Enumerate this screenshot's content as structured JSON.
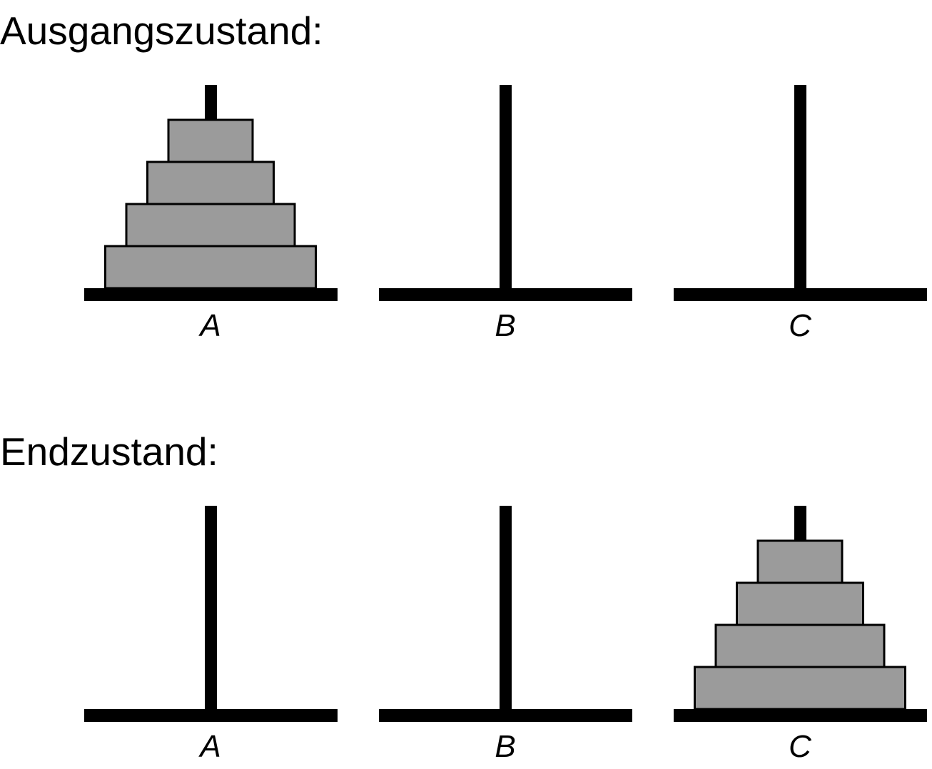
{
  "colors": {
    "disk_fill": "#9b9b9b",
    "disk_stroke": "#000000",
    "peg": "#000000",
    "background": "#ffffff"
  },
  "states": [
    {
      "title": "Ausgangszustand:",
      "pegs": [
        {
          "label": "A",
          "disks": [
            4,
            3,
            2,
            1
          ]
        },
        {
          "label": "B",
          "disks": []
        },
        {
          "label": "C",
          "disks": []
        }
      ]
    },
    {
      "title": "Endzustand:",
      "pegs": [
        {
          "label": "A",
          "disks": []
        },
        {
          "label": "B",
          "disks": []
        },
        {
          "label": "C",
          "disks": [
            4,
            3,
            2,
            1
          ]
        }
      ]
    }
  ]
}
